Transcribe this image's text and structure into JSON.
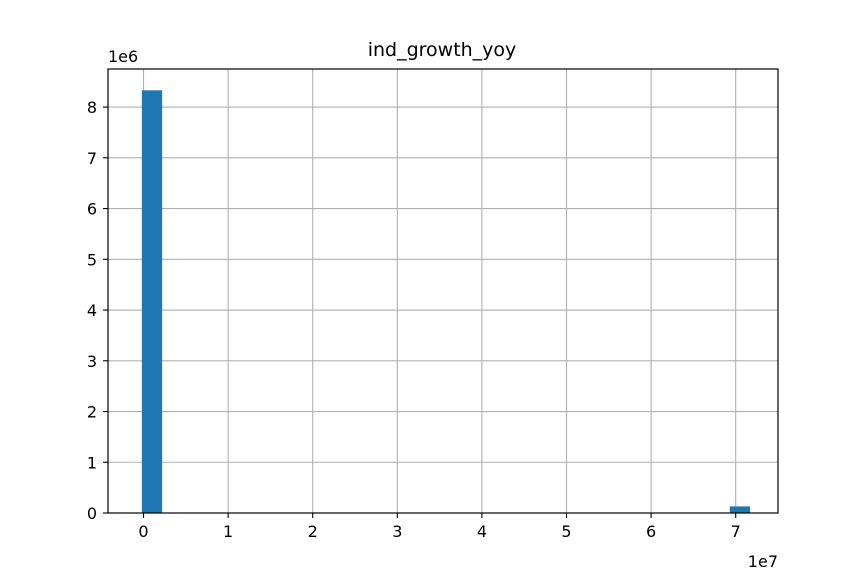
{
  "chart_data": {
    "type": "bar",
    "title": "ind_growth_yoy",
    "x_tick_labels": [
      "0",
      "1",
      "2",
      "3",
      "4",
      "5",
      "6",
      "7"
    ],
    "y_tick_labels": [
      "0",
      "1",
      "2",
      "3",
      "4",
      "5",
      "6",
      "7",
      "8"
    ],
    "x_offset_label": "1e7",
    "y_offset_label": "1e6",
    "xlim": [
      -0.42,
      7.5
    ],
    "ylim": [
      0,
      8.75
    ],
    "grid": true,
    "bar_color": "#1f77b4",
    "bins": [
      {
        "x_start": -0.02,
        "x_end": 0.22,
        "count": 8.33
      },
      {
        "x_start": 6.93,
        "x_end": 7.17,
        "count": 0.13
      }
    ]
  }
}
